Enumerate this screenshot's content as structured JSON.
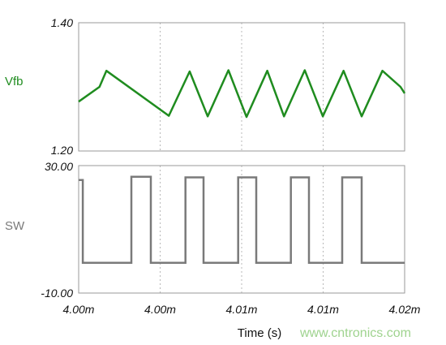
{
  "chart_data": [
    {
      "type": "line",
      "ylabel": "Vfb",
      "ylim": [
        1.2,
        1.4
      ],
      "yticks": [
        "1.40",
        "1.20"
      ],
      "series": [
        {
          "name": "Vfb",
          "color": "#1f8c1f",
          "x": [
            3.9965,
            3.998,
            3.9985,
            4.003,
            4.0045,
            4.0058,
            4.0073,
            4.0086,
            4.0101,
            4.0113,
            4.0128,
            4.0141,
            4.0156,
            4.0169,
            4.0184,
            4.0197,
            4.02
          ],
          "y": [
            1.277,
            1.3,
            1.325,
            1.255,
            1.324,
            1.254,
            1.326,
            1.253,
            1.325,
            1.254,
            1.326,
            1.254,
            1.325,
            1.254,
            1.325,
            1.3,
            1.29
          ]
        }
      ]
    },
    {
      "type": "line",
      "ylabel": "SW",
      "ylim": [
        -10,
        30
      ],
      "yticks": [
        "30.00",
        "-10.00"
      ],
      "xlabel": "Time (s)",
      "xlim": [
        3.9965,
        4.02
      ],
      "xticks": [
        "4.00m",
        "4.00m",
        "4.01m",
        "4.01m",
        "4.02m"
      ],
      "series": [
        {
          "name": "SW",
          "color": "#7a7a7a",
          "x": [
            3.9965,
            3.9968,
            3.9968,
            4.0003,
            4.0003,
            4.0017,
            4.0017,
            4.0042,
            4.0042,
            4.0055,
            4.0055,
            4.008,
            4.008,
            4.0093,
            4.0093,
            4.0118,
            4.0118,
            4.0131,
            4.0131,
            4.0155,
            4.0155,
            4.0169,
            4.0169,
            4.02
          ],
          "y": [
            25.5,
            25.5,
            -0.5,
            -0.5,
            26.5,
            26.5,
            -0.5,
            -0.5,
            26.3,
            26.3,
            -0.5,
            -0.5,
            26.3,
            26.3,
            -0.5,
            -0.5,
            26.3,
            26.3,
            -0.5,
            -0.5,
            26.3,
            26.3,
            -0.5,
            -0.5
          ]
        }
      ]
    }
  ],
  "watermark": "www.cntronics.com",
  "watermark_color": "#9fd38f"
}
